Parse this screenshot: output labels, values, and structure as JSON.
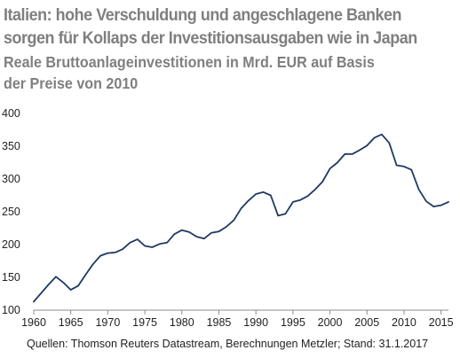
{
  "title_lines": [
    "Italien: hohe Verschuldung und angeschlagene Banken",
    "sorgen für Kollaps der Investitionsausgaben wie in Japan"
  ],
  "subtitle_lines": [
    "Reale Bruttoanlageinvestitionen in Mrd. EUR auf Basis",
    "der Preise von 2010"
  ],
  "source": "Quellen: Thomson Reuters Datastream, Berechnungen Metzler; Stand: 31.1.2017",
  "chart_data": {
    "type": "line",
    "title": "",
    "xlabel": "",
    "ylabel": "",
    "xlim": [
      1960,
      2016
    ],
    "ylim": [
      100,
      400
    ],
    "x_ticks": [
      1960,
      1965,
      1970,
      1975,
      1980,
      1985,
      1990,
      1995,
      2000,
      2005,
      2010,
      2015
    ],
    "y_ticks": [
      100,
      150,
      200,
      250,
      300,
      350,
      400
    ],
    "grid": false,
    "line_color": "#1f3864",
    "series": [
      {
        "name": "",
        "x": [
          1960,
          1961,
          1962,
          1963,
          1964,
          1965,
          1966,
          1967,
          1968,
          1969,
          1970,
          1971,
          1972,
          1973,
          1974,
          1975,
          1976,
          1977,
          1978,
          1979,
          1980,
          1981,
          1982,
          1983,
          1984,
          1985,
          1986,
          1987,
          1988,
          1989,
          1990,
          1991,
          1992,
          1993,
          1994,
          1995,
          1996,
          1997,
          1998,
          1999,
          2000,
          2001,
          2002,
          2003,
          2004,
          2005,
          2006,
          2007,
          2008,
          2009,
          2010,
          2011,
          2012,
          2013,
          2014,
          2015,
          2016
        ],
        "values": [
          113,
          126,
          139,
          151,
          142,
          131,
          137,
          154,
          170,
          183,
          187,
          188,
          193,
          203,
          208,
          198,
          196,
          201,
          203,
          216,
          222,
          219,
          212,
          209,
          218,
          220,
          227,
          237,
          255,
          267,
          277,
          280,
          275,
          244,
          247,
          265,
          268,
          274,
          284,
          296,
          316,
          325,
          338,
          338,
          344,
          351,
          363,
          368,
          355,
          321,
          319,
          314,
          284,
          266,
          258,
          260,
          265
        ]
      }
    ]
  }
}
